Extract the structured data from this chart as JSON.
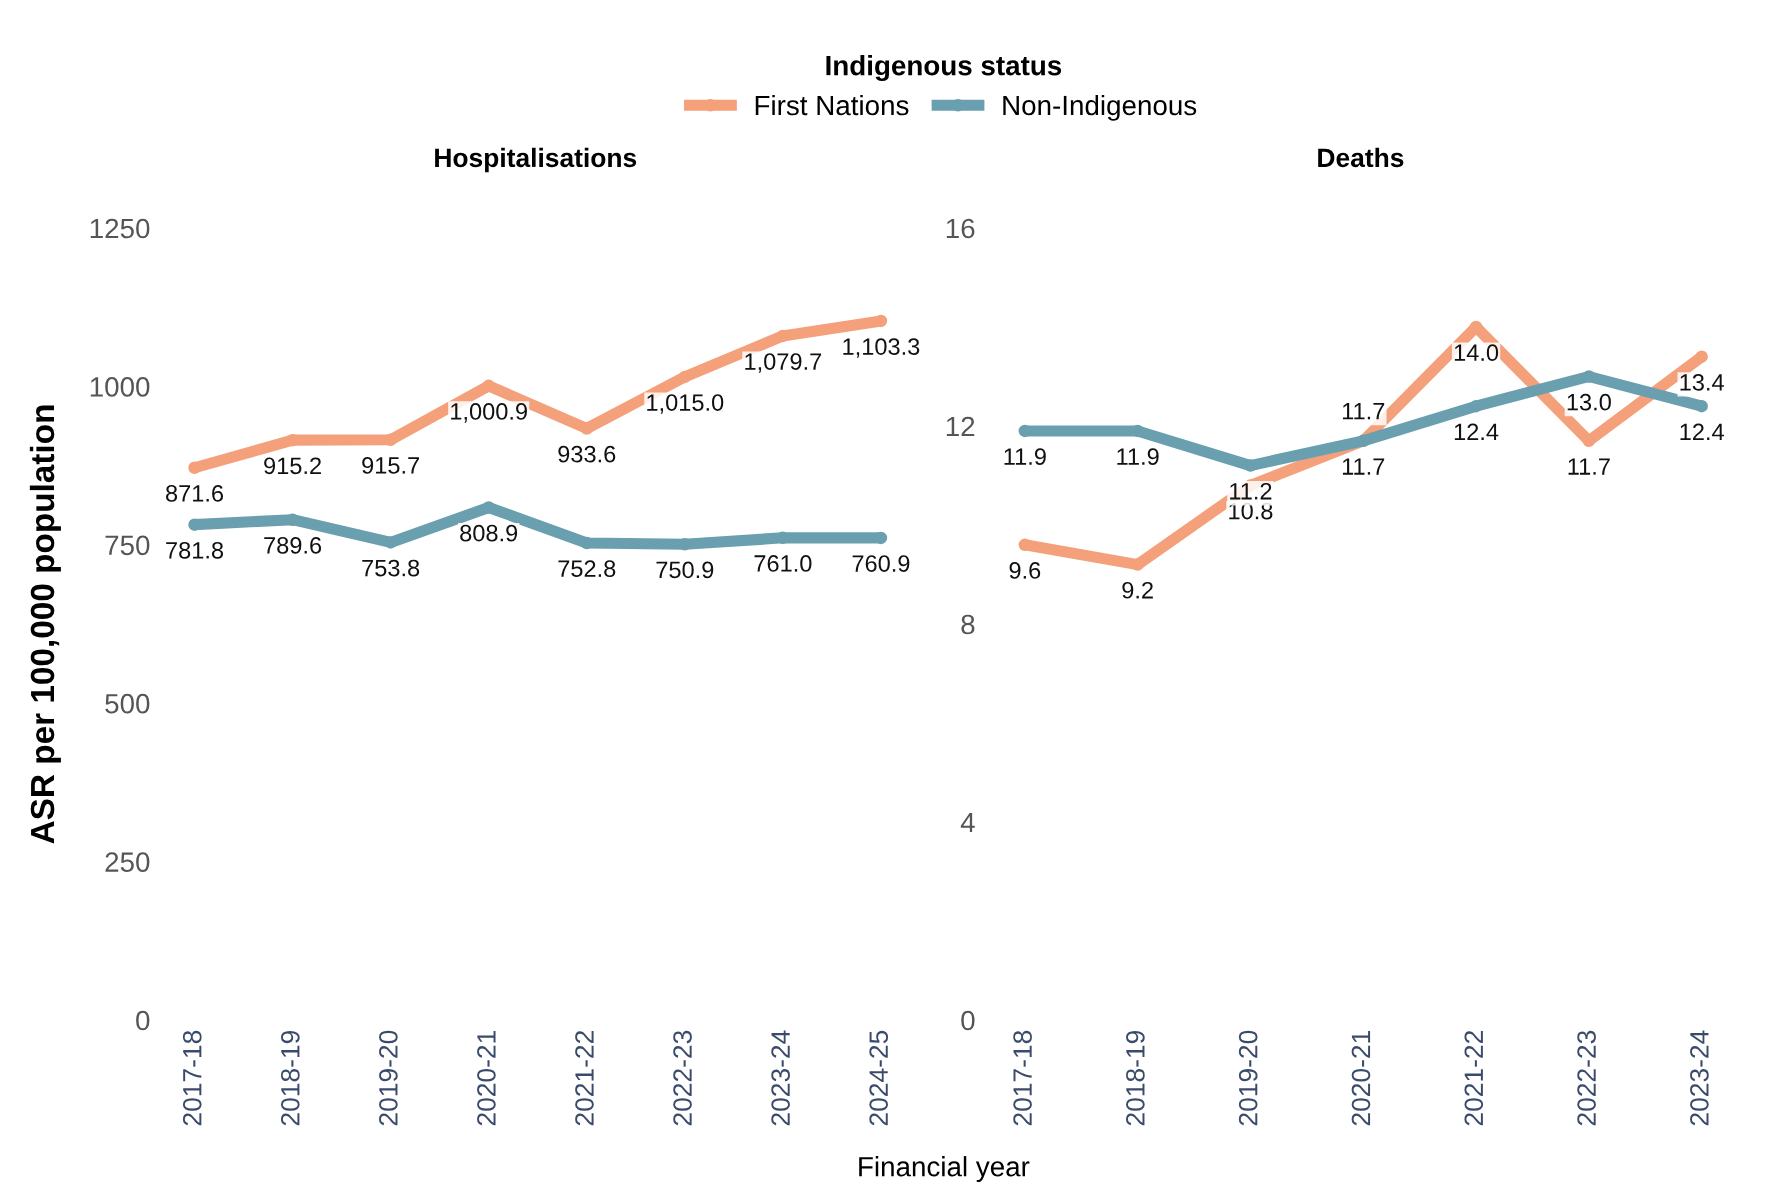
{
  "chart_data": [
    {
      "type": "line",
      "title": "Hospitalisations",
      "ylabel": "ASR per 100,000 population",
      "xlabel": "Financial year",
      "legend_title": "Indigenous status",
      "legend": "top",
      "marker": "circle",
      "grid": false,
      "categories": [
        "2017-18",
        "2018-19",
        "2019-20",
        "2020-21",
        "2021-22",
        "2022-23",
        "2023-24",
        "2024-25"
      ],
      "ylim": [
        0,
        1250
      ],
      "yticks": [
        0,
        250,
        500,
        750,
        1000,
        1250
      ],
      "series": [
        {
          "name": "First Nations",
          "color": "#f4a07a",
          "values": [
            871.6,
            915.2,
            915.7,
            1000.9,
            933.6,
            1015.0,
            1079.7,
            1103.3
          ],
          "value_labels": [
            "871.6",
            "915.2",
            "915.7",
            "1,000.9",
            "933.6",
            "1,015.0",
            "1,079.7",
            "1,103.3"
          ]
        },
        {
          "name": "Non-Indigenous",
          "color": "#6a9fb0",
          "values": [
            781.8,
            789.6,
            753.8,
            808.9,
            752.8,
            750.9,
            761.0,
            760.9
          ],
          "value_labels": [
            "781.8",
            "789.6",
            "753.8",
            "808.9",
            "752.8",
            "750.9",
            "761.0",
            "760.9"
          ]
        }
      ]
    },
    {
      "type": "line",
      "title": "Deaths",
      "marker": "circle",
      "grid": false,
      "categories": [
        "2017-18",
        "2018-19",
        "2019-20",
        "2020-21",
        "2021-22",
        "2022-23",
        "2023-24"
      ],
      "ylim": [
        0,
        16
      ],
      "yticks": [
        0,
        4,
        8,
        12,
        16
      ],
      "series": [
        {
          "name": "First Nations",
          "color": "#f4a07a",
          "values": [
            9.6,
            9.2,
            10.8,
            11.7,
            14.0,
            11.7,
            13.4
          ],
          "value_labels": [
            "9.6",
            "9.2",
            "10.8",
            "11.7",
            "14.0",
            "11.7",
            "13.4"
          ]
        },
        {
          "name": "Non-Indigenous",
          "color": "#6a9fb0",
          "values": [
            11.9,
            11.9,
            11.2,
            11.7,
            12.4,
            13.0,
            12.4
          ],
          "value_labels": [
            "11.9",
            "11.9",
            "11.2",
            "11.7",
            "12.4",
            "13.0",
            "12.4"
          ]
        }
      ]
    }
  ]
}
